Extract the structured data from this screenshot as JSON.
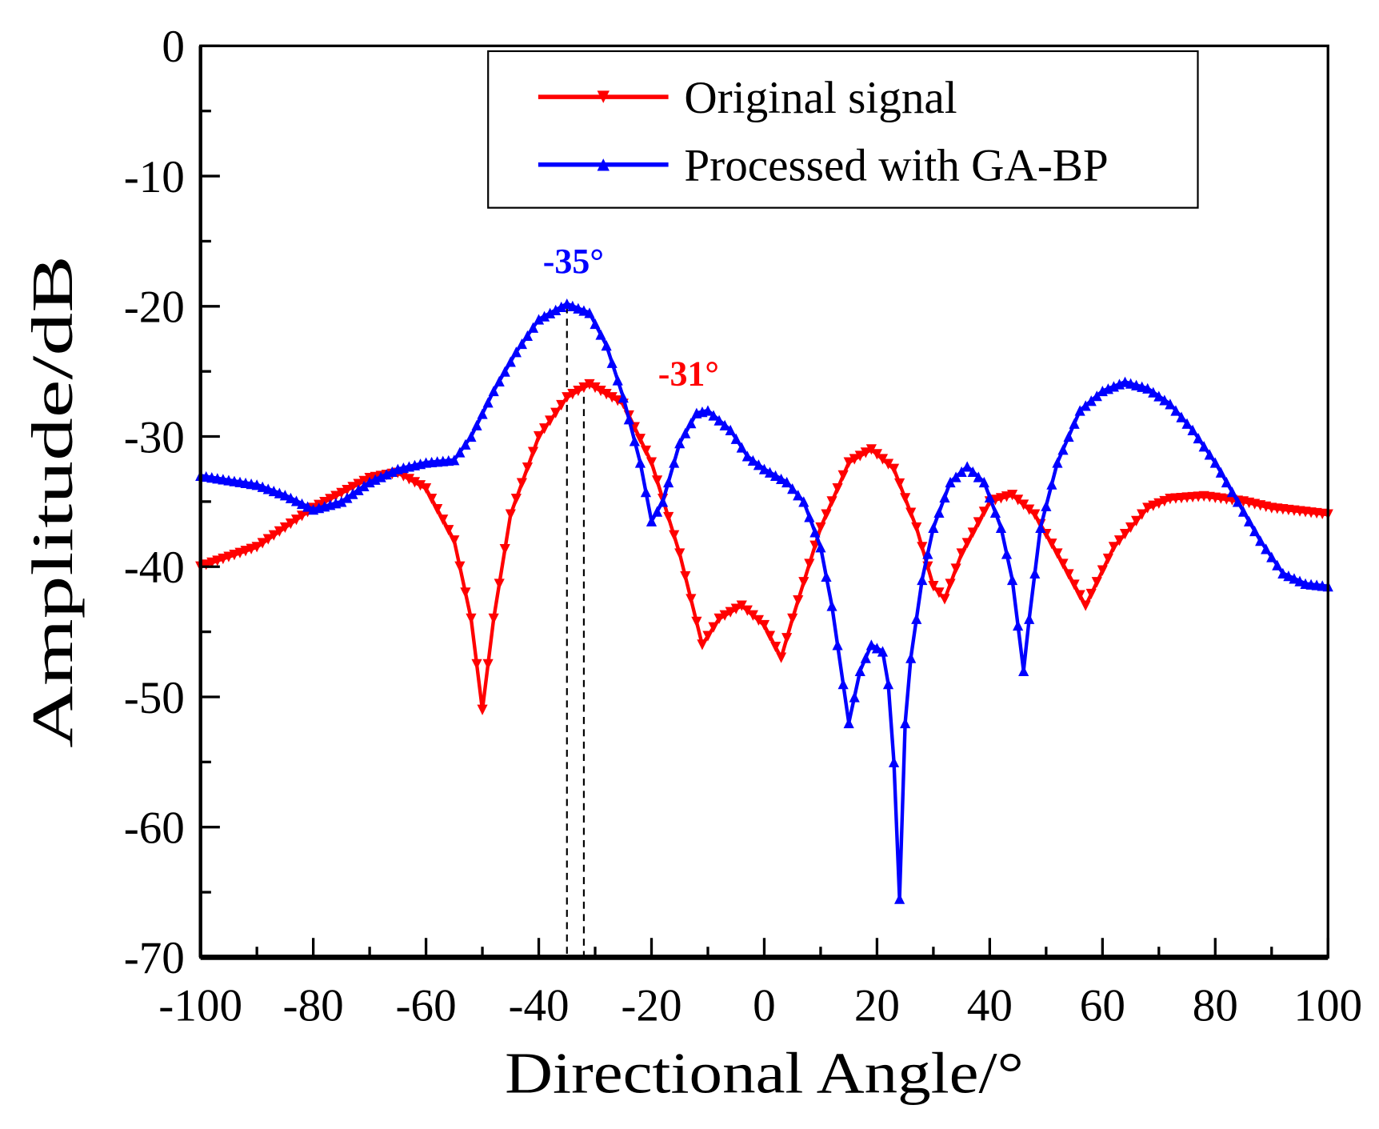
{
  "chart_data": {
    "type": "line",
    "title": "",
    "xlabel": "Directional Angle/°",
    "ylabel": "Amplitude/dB",
    "xlim": [
      -100,
      100
    ],
    "ylim": [
      -70,
      0
    ],
    "xticks": [
      -100,
      -80,
      -60,
      -40,
      -20,
      0,
      20,
      40,
      60,
      80,
      100
    ],
    "yticks": [
      0,
      -10,
      -20,
      -30,
      -40,
      -50,
      -60,
      -70
    ],
    "grid": false,
    "legend_position": "top-right",
    "series": [
      {
        "name": "Original signal",
        "color": "#ff0000",
        "marker": "triangle-down",
        "x": [
          -100,
          -90,
          -80,
          -70,
          -65,
          -60,
          -55,
          -52,
          -50,
          -48,
          -45,
          -40,
          -35,
          -31,
          -25,
          -20,
          -15,
          -11,
          -8,
          -4,
          0,
          3,
          5,
          10,
          15,
          19,
          23,
          27,
          30,
          32,
          35,
          40,
          44,
          48,
          52,
          57,
          62,
          68,
          72,
          78,
          85,
          90,
          100
        ],
        "y": [
          -40,
          -38.5,
          -35.5,
          -33.2,
          -32.8,
          -34,
          -38,
          -44,
          -51,
          -44,
          -36,
          -30,
          -27,
          -26,
          -27.5,
          -32,
          -39,
          -46,
          -44,
          -43,
          -44.5,
          -47,
          -44,
          -37,
          -32,
          -31,
          -32.5,
          -37,
          -41.5,
          -42.5,
          -39,
          -35,
          -34.5,
          -36,
          -39,
          -43,
          -38.5,
          -35.5,
          -34.8,
          -34.6,
          -35,
          -35.5,
          -36
        ]
      },
      {
        "name": "Processed with GA-BP",
        "color": "#0000ff",
        "marker": "triangle-up",
        "x": [
          -100,
          -90,
          -85,
          -80,
          -75,
          -70,
          -65,
          -60,
          -55,
          -52,
          -48,
          -44,
          -40,
          -35,
          -31,
          -28,
          -25,
          -22,
          -20,
          -18,
          -15,
          -12,
          -10,
          -6,
          -3,
          0,
          4,
          7,
          10,
          12,
          14,
          15,
          17,
          19,
          21,
          22,
          23,
          24,
          25,
          26,
          28,
          30,
          33,
          36,
          39,
          42,
          44,
          46,
          47,
          49,
          52,
          56,
          60,
          64,
          68,
          72,
          76,
          80,
          84,
          88,
          92,
          96,
          100
        ],
        "y": [
          -33,
          -33.7,
          -34.5,
          -35.6,
          -35,
          -33.5,
          -32.5,
          -32,
          -31.8,
          -30,
          -26.5,
          -23.5,
          -21,
          -19.8,
          -20.5,
          -23,
          -27,
          -32,
          -36.5,
          -35,
          -30.5,
          -28.2,
          -28,
          -29.5,
          -31.5,
          -32.5,
          -33.5,
          -35,
          -38.5,
          -43,
          -49,
          -52,
          -48,
          -46,
          -46.5,
          -49,
          -55,
          -65.5,
          -52,
          -47,
          -41,
          -37,
          -33.5,
          -32.3,
          -33.5,
          -37,
          -41,
          -48,
          -44,
          -37,
          -32,
          -28,
          -26.5,
          -25.8,
          -26.3,
          -27.5,
          -29.5,
          -32,
          -35,
          -38,
          -40.5,
          -41.3,
          -41.5
        ]
      }
    ],
    "annotations": [
      {
        "text": "-35°",
        "x": -35,
        "y": -20,
        "color": "#0000ff"
      },
      {
        "text": "-31°",
        "x": -31,
        "y": -26,
        "color": "#ff0000"
      }
    ],
    "reference_lines": [
      {
        "style": "dashed",
        "x": -35,
        "from_y": -20,
        "to_y": -70,
        "color": "#000000"
      },
      {
        "style": "dashed",
        "x": -32,
        "from_y": -26,
        "to_y": -70,
        "color": "#000000"
      }
    ]
  }
}
